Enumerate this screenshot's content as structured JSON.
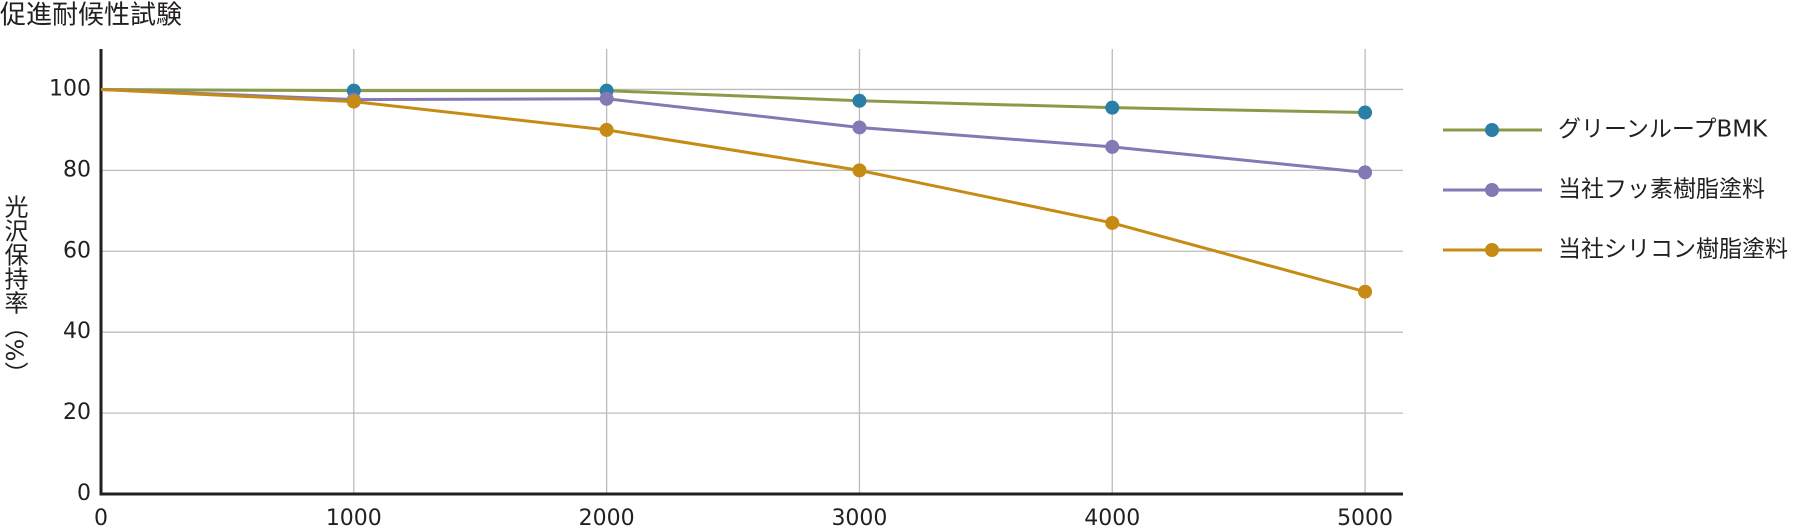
{
  "chart_data": {
    "type": "line",
    "title": "促進耐候性試験",
    "ylabel": "光沢保持率（%）",
    "x": [
      0,
      1000,
      2000,
      3000,
      4000,
      5000
    ],
    "xlim": [
      0,
      5150
    ],
    "xticks": [
      0,
      1000,
      2000,
      3000,
      4000,
      5000
    ],
    "ylim": [
      0,
      110
    ],
    "yticks": [
      0,
      20,
      40,
      60,
      80,
      100
    ],
    "grid": true,
    "legend": "right",
    "series": [
      {
        "name": "グリーンループBMK",
        "color": "#8a9a48",
        "marker_color": "#2b7ea5",
        "values": [
          100,
          99.7,
          99.7,
          97.2,
          95.5,
          94.3
        ]
      },
      {
        "name": "当社フッ素樹脂塗料",
        "color": "#8479b5",
        "marker_color": "#8479b5",
        "values": [
          100,
          97.5,
          97.7,
          90.6,
          85.8,
          79.5
        ]
      },
      {
        "name": "当社シリコン樹脂塗料",
        "color": "#c58b14",
        "marker_color": "#c58b14",
        "values": [
          100,
          97,
          90,
          80,
          67,
          50
        ]
      }
    ]
  }
}
